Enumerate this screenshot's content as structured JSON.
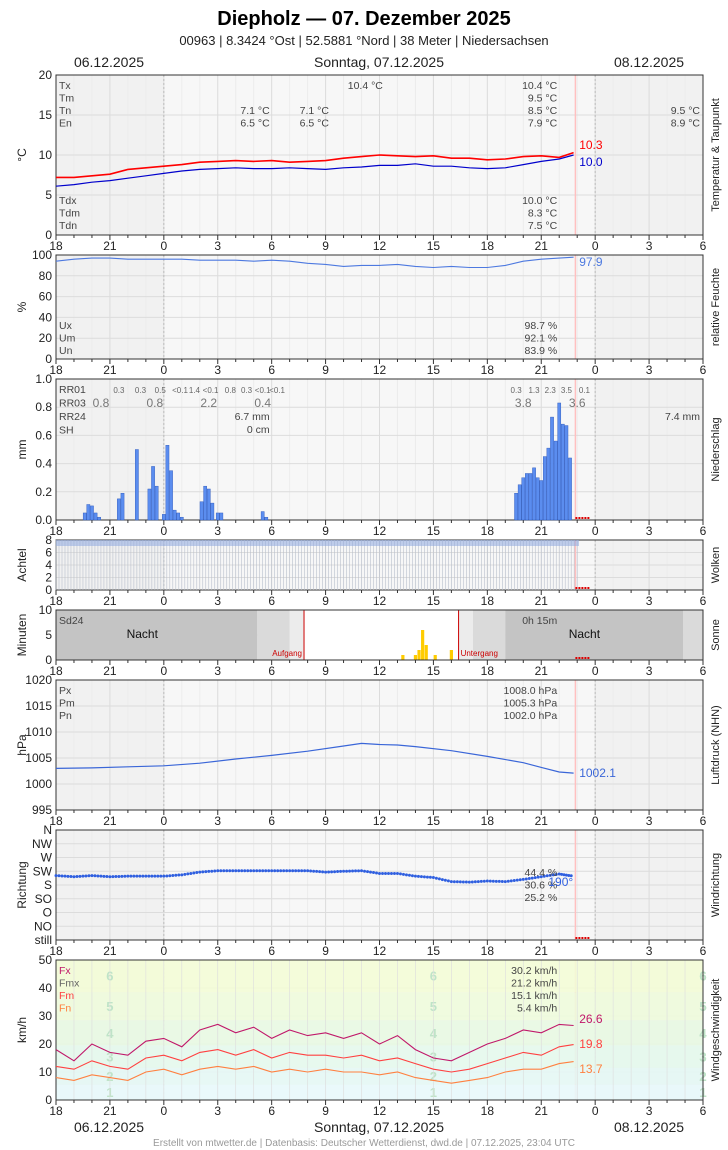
{
  "header": {
    "title": "Diepholz  —  07. Dezember 2025",
    "subtitle": "00963  |  8.3424 °Ost  |  52.5881 °Nord  |  38 Meter  |  Niedersachsen",
    "date_left": "06.12.2025",
    "date_center": "Sonntag, 07.12.2025",
    "date_right": "08.12.2025"
  },
  "footer": {
    "credit": "Erstellt von mtwetter.de | Datenbasis: Deutscher Wetterdienst, dwd.de | 07.12.2025, 23:04 UTC"
  },
  "x_axis": {
    "ticks": [
      "18",
      "21",
      "0",
      "3",
      "6",
      "9",
      "12",
      "15",
      "18",
      "21",
      "0",
      "3",
      "6"
    ],
    "range_hours": [
      18,
      54
    ]
  },
  "colors": {
    "temp": "#ff0000",
    "dew": "#0000cc",
    "humidity": "#4d79e0",
    "precip": "#5b8def",
    "cloud": "#8fa9e0",
    "sun": "#ffcc00",
    "pressure": "#3a66d8",
    "wind_dir": "#2f5fe0",
    "gust_max": "#c0186a",
    "wind_mean": "#ff4040",
    "wind_min": "#ff8040"
  },
  "panels": {
    "temp": {
      "ylabel": "°C",
      "side_label": "Temperatur & Taupunkt",
      "yticks": [
        "0",
        "5",
        "10",
        "15",
        "20"
      ],
      "labels_top": [
        "Tx",
        "Tm",
        "Tn",
        "En"
      ],
      "labels_bottom": [
        "Tdx",
        "Tdm",
        "Tdn"
      ],
      "notes": [
        {
          "text": "10.4 °C",
          "at": 36.3,
          "row": 0
        },
        {
          "text": "10.4 °C",
          "at": 46.0,
          "row": 0
        },
        {
          "text": "9.5 °C",
          "at": 46.0,
          "row": 1
        },
        {
          "text": "7.1 °C",
          "at": 30.0,
          "row": 2
        },
        {
          "text": "7.1 °C",
          "at": 33.3,
          "row": 2
        },
        {
          "text": "8.5 °C",
          "at": 46.0,
          "row": 2
        },
        {
          "text": "9.5 °C",
          "at": 54.0,
          "row": 2
        },
        {
          "text": "6.5 °C",
          "at": 30.0,
          "row": 3
        },
        {
          "text": "6.5 °C",
          "at": 33.3,
          "row": 3
        },
        {
          "text": "7.9 °C",
          "at": 46.0,
          "row": 3
        },
        {
          "text": "8.9 °C",
          "at": 54.0,
          "row": 3
        }
      ],
      "notes_bottom": [
        "10.0 °C",
        "8.3 °C",
        "7.5 °C"
      ],
      "end_temp": "10.3",
      "end_dew": "10.0"
    },
    "humidity": {
      "ylabel": "%",
      "side_label": "relative Feuchte",
      "yticks": [
        "0",
        "20",
        "40",
        "60",
        "80",
        "100"
      ],
      "labels": [
        "Ux",
        "Um",
        "Un"
      ],
      "values": [
        "98.7 %",
        "92.1 %",
        "83.9 %"
      ],
      "end_value": "97.9"
    },
    "precip": {
      "ylabel": "mm",
      "side_label": "Niederschlag",
      "yticks": [
        "0.0",
        "0.2",
        "0.4",
        "0.6",
        "0.8",
        "1.0"
      ],
      "labels": [
        "RR01",
        "RR03",
        "RR24",
        "SH"
      ],
      "rr01": [
        {
          "text": "0.3",
          "at": 21.5
        },
        {
          "text": "0.3",
          "at": 22.7
        },
        {
          "text": "0.5",
          "at": 23.8
        },
        {
          "text": "<0.1",
          "at": 24.9
        },
        {
          "text": "1.4",
          "at": 25.7
        },
        {
          "text": "<0.1",
          "at": 26.6
        },
        {
          "text": "0.8",
          "at": 27.7
        },
        {
          "text": "0.3",
          "at": 28.6
        },
        {
          "text": "<0.1",
          "at": 29.5
        },
        {
          "text": "<0.1",
          "at": 30.3
        },
        {
          "text": "0.3",
          "at": 43.6
        },
        {
          "text": "1.3",
          "at": 44.6
        },
        {
          "text": "2.3",
          "at": 45.5
        },
        {
          "text": "3.5",
          "at": 46.4
        },
        {
          "text": "0.1",
          "at": 47.4
        }
      ],
      "rr03": [
        {
          "text": "0.8",
          "at": 20.5
        },
        {
          "text": "0.8",
          "at": 23.5
        },
        {
          "text": "2.2",
          "at": 26.5
        },
        {
          "text": "0.4",
          "at": 29.5
        },
        {
          "text": "3.8",
          "at": 44.0
        },
        {
          "text": "3.6",
          "at": 47.0
        }
      ],
      "rr24": [
        {
          "text": "6.7 mm",
          "at": 30.0
        },
        {
          "text": "7.4 mm",
          "at": 54.0
        }
      ],
      "sh": [
        {
          "text": "0 cm",
          "at": 30.0
        }
      ]
    },
    "cloud": {
      "ylabel": "Achtel",
      "side_label": "Wolken",
      "yticks": [
        "0",
        "2",
        "4",
        "6",
        "8"
      ]
    },
    "sun": {
      "ylabel": "Minuten",
      "side_label": "Sonne",
      "yticks": [
        "0",
        "5",
        "10"
      ],
      "label_sd": "Sd24",
      "value_sd": "0h 15m",
      "night": "Nacht",
      "sunrise": "Aufgang",
      "sunset": "Untergang"
    },
    "pressure": {
      "ylabel": "hPa",
      "side_label": "Luftdruck (NHN)",
      "yticks": [
        "995",
        "1000",
        "1005",
        "1010",
        "1015",
        "1020"
      ],
      "labels": [
        "Px",
        "Pm",
        "Pn"
      ],
      "values": [
        "1008.0 hPa",
        "1005.3 hPa",
        "1002.0 hPa"
      ],
      "end_value": "1002.1"
    },
    "wind_dir": {
      "ylabel": "Richtung",
      "side_label": "Windrichtung",
      "yticks": [
        "still",
        "NO",
        "O",
        "SO",
        "S",
        "SW",
        "W",
        "NW",
        "N"
      ],
      "values": [
        "44.4 %",
        "30.6 %",
        "25.2 %"
      ],
      "end_value": "190°"
    },
    "wind_speed": {
      "ylabel": "km/h",
      "side_label": "Windgeschwindigkeit",
      "yticks": [
        "0",
        "10",
        "20",
        "30",
        "40",
        "50"
      ],
      "labels": [
        "Fx",
        "Fmx",
        "Fm",
        "Fn"
      ],
      "values": [
        "30.2 km/h",
        "21.2 km/h",
        "15.1 km/h",
        "5.4 km/h"
      ],
      "end_max": "26.6",
      "end_mean": "19.8",
      "end_min": "13.7",
      "bft": [
        "1",
        "2",
        "3",
        "4",
        "5",
        "6"
      ]
    }
  },
  "chart_data": [
    {
      "type": "line",
      "name": "temperature",
      "x_hours": [
        18,
        19,
        20,
        21,
        22,
        23,
        24,
        25,
        26,
        27,
        28,
        29,
        30,
        31,
        32,
        33,
        34,
        35,
        36,
        37,
        38,
        39,
        40,
        41,
        42,
        43,
        44,
        45,
        46,
        46.8
      ],
      "series": [
        {
          "name": "",
          "values": [
            7.2,
            7.2,
            7.4,
            7.6,
            8.2,
            8.4,
            8.6,
            8.8,
            9.1,
            9.2,
            9.3,
            9.2,
            9.3,
            9.1,
            9.2,
            9.3,
            9.6,
            9.8,
            10.0,
            9.9,
            9.8,
            9.9,
            9.6,
            9.6,
            9.4,
            9.5,
            9.8,
            9.9,
            9.7,
            10.3
          ]
        },
        {
          "name": "",
          "values": [
            6.1,
            6.3,
            6.6,
            6.8,
            7.1,
            7.4,
            7.7,
            8.0,
            8.2,
            8.3,
            8.4,
            8.3,
            8.3,
            8.4,
            8.3,
            8.2,
            8.4,
            8.5,
            8.7,
            8.7,
            8.9,
            8.6,
            8.6,
            8.4,
            8.3,
            8.4,
            8.8,
            9.2,
            9.5,
            10.0
          ]
        }
      ],
      "ylim": [
        0,
        20
      ]
    },
    {
      "type": "line",
      "name": "humidity",
      "x_hours": [
        18,
        19,
        20,
        21,
        22,
        23,
        24,
        25,
        26,
        27,
        28,
        29,
        30,
        31,
        32,
        33,
        34,
        35,
        36,
        37,
        38,
        39,
        40,
        41,
        42,
        43,
        44,
        45,
        46,
        46.8
      ],
      "values": [
        94,
        96,
        97,
        97,
        96,
        96,
        96,
        96,
        95,
        95,
        95,
        94,
        95,
        94,
        92,
        91,
        89,
        90,
        90,
        91,
        89,
        88,
        89,
        88,
        88,
        90,
        94,
        96,
        97,
        97.9
      ],
      "ylim": [
        0,
        100
      ]
    },
    {
      "type": "bar",
      "name": "precipitation_10min",
      "x_hours": [
        19.6,
        19.8,
        20.0,
        20.2,
        20.4,
        21.5,
        21.7,
        22.5,
        23.2,
        23.4,
        23.6,
        24.0,
        24.2,
        24.4,
        24.6,
        24.8,
        25.0,
        26.1,
        26.3,
        26.5,
        26.7,
        27.0,
        27.2,
        29.5,
        29.7,
        43.6,
        43.8,
        44.0,
        44.2,
        44.4,
        44.6,
        44.8,
        45.0,
        45.2,
        45.4,
        45.6,
        45.8,
        46.0,
        46.2,
        46.4,
        46.6
      ],
      "values": [
        0.05,
        0.11,
        0.1,
        0.05,
        0.02,
        0.15,
        0.19,
        0.5,
        0.22,
        0.38,
        0.24,
        0.04,
        0.53,
        0.35,
        0.07,
        0.05,
        0.02,
        0.13,
        0.24,
        0.22,
        0.12,
        0.05,
        0.05,
        0.06,
        0.02,
        0.19,
        0.25,
        0.3,
        0.33,
        0.33,
        0.37,
        0.3,
        0.28,
        0.45,
        0.51,
        0.73,
        0.56,
        0.83,
        0.68,
        0.67,
        0.44
      ],
      "ylim": [
        0,
        1.0
      ]
    },
    {
      "type": "bar",
      "name": "cloud_cover",
      "x_range_hours": [
        18,
        47.1
      ],
      "value": 8,
      "ylim": [
        0,
        8
      ]
    },
    {
      "type": "bar",
      "name": "sunshine_10min",
      "x_hours": [
        37.3,
        38.0,
        38.2,
        38.4,
        38.6,
        39.1,
        40.0
      ],
      "values": [
        1,
        1,
        2,
        6,
        3,
        1,
        2
      ],
      "ylim": [
        0,
        10
      ]
    },
    {
      "type": "line",
      "name": "pressure",
      "x_hours": [
        18,
        20,
        22,
        24,
        26,
        28,
        30,
        32,
        34,
        35,
        36,
        37,
        38,
        40,
        42,
        44,
        45,
        46,
        46.8
      ],
      "values": [
        1003.0,
        1003.1,
        1003.3,
        1003.5,
        1004.0,
        1004.8,
        1005.5,
        1006.3,
        1007.3,
        1007.8,
        1007.6,
        1007.5,
        1007.2,
        1006.4,
        1005.3,
        1004.1,
        1003.2,
        1002.3,
        1002.1
      ],
      "ylim": [
        995,
        1020
      ]
    },
    {
      "type": "scatter",
      "name": "wind_direction",
      "categories": [
        "still",
        "NO",
        "O",
        "SO",
        "S",
        "SW",
        "W",
        "NW",
        "N"
      ],
      "x_hours": [
        18,
        19,
        20,
        21,
        22,
        23,
        24,
        25,
        26,
        27,
        28,
        29,
        30,
        31,
        32,
        33,
        34,
        35,
        36,
        37,
        38,
        39,
        40,
        41,
        42,
        43,
        44,
        45,
        46,
        46.8
      ],
      "values": [
        192,
        188,
        192,
        188,
        190,
        190,
        190,
        195,
        205,
        210,
        210,
        210,
        210,
        210,
        210,
        205,
        208,
        210,
        200,
        200,
        190,
        185,
        170,
        168,
        172,
        170,
        178,
        188,
        198,
        190
      ],
      "ylim": [
        -45,
        360
      ]
    },
    {
      "type": "line",
      "name": "wind_speed",
      "x_hours": [
        18,
        19,
        20,
        21,
        22,
        23,
        24,
        25,
        26,
        27,
        28,
        29,
        30,
        31,
        32,
        33,
        34,
        35,
        36,
        37,
        38,
        39,
        40,
        41,
        42,
        43,
        44,
        45,
        46,
        46.8
      ],
      "series": [
        {
          "name": "",
          "values": [
            18,
            14,
            20,
            17,
            16,
            21,
            22,
            19,
            25,
            27,
            24,
            26,
            22,
            25,
            23,
            24,
            22,
            24,
            20,
            23,
            18,
            15,
            14,
            17,
            20,
            22,
            25,
            24,
            27,
            26.6
          ]
        },
        {
          "name": "",
          "values": [
            12,
            11,
            14,
            12,
            11,
            15,
            16,
            14,
            17,
            18,
            16,
            18,
            15,
            17,
            16,
            16,
            15,
            16,
            14,
            15,
            13,
            11,
            10,
            11,
            13,
            15,
            17,
            16,
            19,
            19.8
          ]
        },
        {
          "name": "",
          "values": [
            8,
            7,
            9,
            8,
            7,
            10,
            11,
            9,
            11,
            12,
            11,
            12,
            10,
            11,
            10,
            11,
            10,
            10,
            9,
            10,
            8,
            7,
            6,
            7,
            8,
            10,
            11,
            11,
            13,
            13.7
          ]
        }
      ],
      "ylim": [
        0,
        50
      ]
    }
  ]
}
